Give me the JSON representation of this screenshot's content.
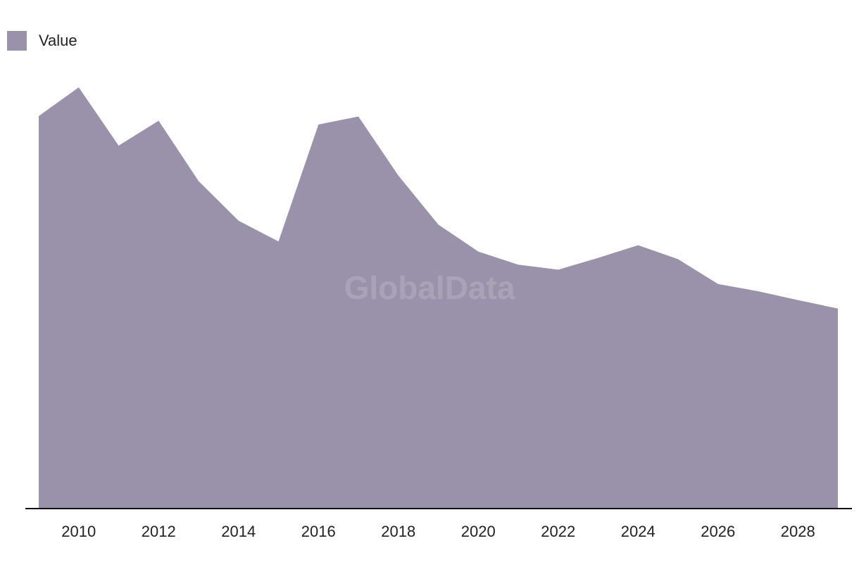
{
  "watermark": "GlobalData",
  "colors": {
    "area": "#9a91aa",
    "axis": "#111111",
    "text": "#222222"
  },
  "chart_data": {
    "type": "area",
    "title": "",
    "xlabel": "",
    "ylabel": "",
    "x": [
      2009,
      2010,
      2011,
      2012,
      2013,
      2014,
      2015,
      2016,
      2017,
      2018,
      2019,
      2020,
      2021,
      2022,
      2023,
      2024,
      2025,
      2026,
      2027,
      2028,
      2029
    ],
    "series": [
      {
        "name": "Value",
        "values": [
          93.0,
          99.8,
          86.0,
          91.9,
          77.6,
          68.2,
          63.3,
          91.0,
          92.9,
          78.9,
          67.3,
          60.9,
          57.8,
          56.6,
          59.4,
          62.4,
          59.1,
          53.2,
          51.5,
          49.4,
          47.4
        ]
      }
    ],
    "xticks": [
      "2010",
      "2012",
      "2014",
      "2016",
      "2018",
      "2020",
      "2022",
      "2024",
      "2026",
      "2028"
    ],
    "xlim": [
      2009,
      2029
    ],
    "ylim": [
      0,
      100
    ],
    "grid": false,
    "legend": "top-left"
  }
}
